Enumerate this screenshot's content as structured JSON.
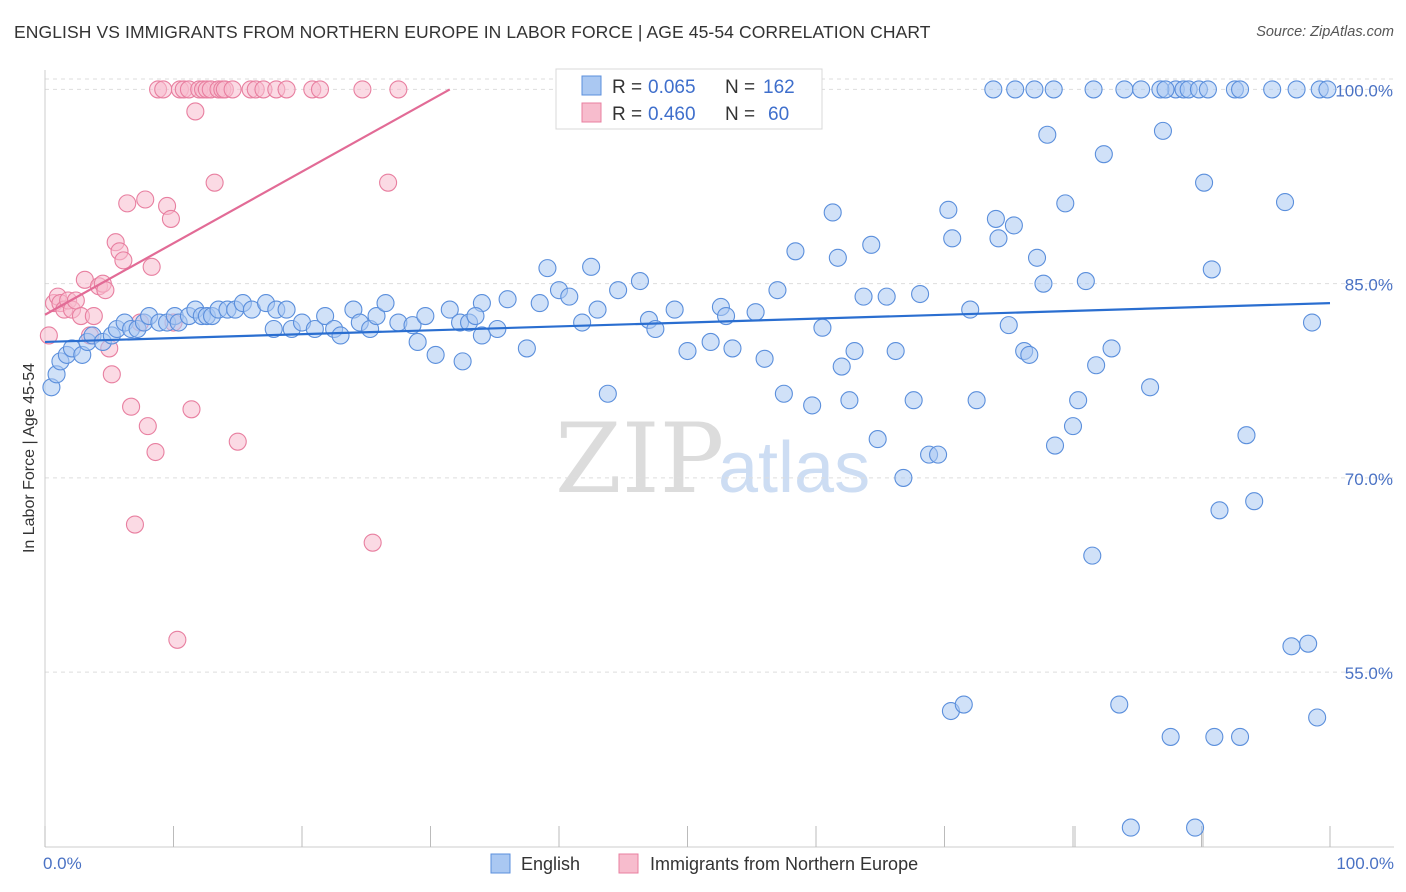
{
  "title": "ENGLISH VS IMMIGRANTS FROM NORTHERN EUROPE IN LABOR FORCE | AGE 45-54 CORRELATION CHART",
  "source": "Source: ZipAtlas.com",
  "watermark": {
    "zip": "ZIP",
    "atlas": "atlas"
  },
  "colors": {
    "english_fill": "#aac8f2",
    "english_stroke": "#5b8fdc",
    "english_line": "#2a6ed0",
    "immig_fill": "#f7bccd",
    "immig_stroke": "#e87fa0",
    "immig_line": "#e26b96",
    "grid": "#dddddd",
    "tick_text": "#4a72c4"
  },
  "stats_box": {
    "rows": [
      {
        "r_label": "R =",
        "r_value": "0.065",
        "n_label": "N =",
        "n_value": "162"
      },
      {
        "r_label": "R =",
        "r_value": "0.460",
        "n_label": "N =",
        "n_value": "60"
      }
    ]
  },
  "chart_data": {
    "type": "scatter",
    "title": "ENGLISH VS IMMIGRANTS FROM NORTHERN EUROPE IN LABOR FORCE | AGE 45-54 CORRELATION CHART",
    "xlabel": "",
    "ylabel": "In Labor Force | Age 45-54",
    "xlim": [
      0,
      100
    ],
    "ylim": [
      41.5,
      101.5
    ],
    "x_tick_labels": [
      "0.0%",
      "100.0%"
    ],
    "y_ticks": [
      55,
      70,
      85,
      100
    ],
    "y_tick_labels": [
      "55.0%",
      "70.0%",
      "85.0%",
      "100.0%"
    ],
    "grid": true,
    "legend_position": "bottom-center",
    "series": [
      {
        "name": "English",
        "R": 0.065,
        "N": 162,
        "trend": [
          [
            0,
            80.5
          ],
          [
            100,
            83.5
          ]
        ],
        "points": [
          [
            0.5,
            77
          ],
          [
            0.9,
            78
          ],
          [
            1.2,
            79
          ],
          [
            1.7,
            79.5
          ],
          [
            2.1,
            80
          ],
          [
            2.9,
            79.5
          ],
          [
            3.3,
            80.5
          ],
          [
            3.7,
            81
          ],
          [
            4.5,
            80.5
          ],
          [
            5.2,
            81
          ],
          [
            5.6,
            81.5
          ],
          [
            6.2,
            82
          ],
          [
            6.7,
            81.5
          ],
          [
            7.2,
            81.5
          ],
          [
            7.7,
            82
          ],
          [
            8.1,
            82.5
          ],
          [
            8.9,
            82
          ],
          [
            9.5,
            82
          ],
          [
            10.1,
            82.5
          ],
          [
            10.4,
            82
          ],
          [
            11.2,
            82.5
          ],
          [
            11.7,
            83
          ],
          [
            12.2,
            82.5
          ],
          [
            12.6,
            82.5
          ],
          [
            13.0,
            82.5
          ],
          [
            13.5,
            83
          ],
          [
            14.2,
            83
          ],
          [
            14.8,
            83
          ],
          [
            15.4,
            83.5
          ],
          [
            16.1,
            83
          ],
          [
            17.2,
            83.5
          ],
          [
            18.0,
            83
          ],
          [
            18.8,
            83
          ],
          [
            17.8,
            81.5
          ],
          [
            19.2,
            81.5
          ],
          [
            20.0,
            82
          ],
          [
            21.0,
            81.5
          ],
          [
            21.8,
            82.5
          ],
          [
            22.5,
            81.5
          ],
          [
            23.0,
            81
          ],
          [
            24.0,
            83
          ],
          [
            24.5,
            82
          ],
          [
            25.3,
            81.5
          ],
          [
            25.8,
            82.5
          ],
          [
            26.5,
            83.5
          ],
          [
            27.5,
            82
          ],
          [
            28.6,
            81.8
          ],
          [
            29.0,
            80.5
          ],
          [
            29.6,
            82.5
          ],
          [
            30.4,
            79.5
          ],
          [
            31.5,
            83
          ],
          [
            32.3,
            82
          ],
          [
            33.0,
            82
          ],
          [
            34.0,
            81
          ],
          [
            35.2,
            81.5
          ],
          [
            36.0,
            83.8
          ],
          [
            37.5,
            80
          ],
          [
            38.5,
            83.5
          ],
          [
            39.1,
            86.2
          ],
          [
            40.0,
            84.5
          ],
          [
            40.8,
            84
          ],
          [
            34.0,
            83.5
          ],
          [
            33.5,
            82.5
          ],
          [
            32.5,
            79
          ],
          [
            41.8,
            82
          ],
          [
            42.5,
            86.3
          ],
          [
            43.0,
            83
          ],
          [
            43.8,
            76.5
          ],
          [
            44.6,
            84.5
          ],
          [
            46.3,
            85.2
          ],
          [
            47.0,
            82.2
          ],
          [
            47.5,
            81.5
          ],
          [
            49.0,
            83
          ],
          [
            50.0,
            79.8
          ],
          [
            51.8,
            80.5
          ],
          [
            52.6,
            83.2
          ],
          [
            53.0,
            82.5
          ],
          [
            53.5,
            80
          ],
          [
            55.3,
            82.8
          ],
          [
            56.0,
            79.2
          ],
          [
            57.0,
            84.5
          ],
          [
            57.5,
            76.5
          ],
          [
            58.4,
            87.5
          ],
          [
            59.7,
            75.6
          ],
          [
            60.5,
            81.6
          ],
          [
            61.3,
            90.5
          ],
          [
            61.7,
            87
          ],
          [
            62.0,
            78.6
          ],
          [
            62.6,
            76
          ],
          [
            63.0,
            79.8
          ],
          [
            63.7,
            84
          ],
          [
            64.3,
            88
          ],
          [
            64.8,
            73
          ],
          [
            65.5,
            84
          ],
          [
            66.2,
            79.8
          ],
          [
            66.8,
            70
          ],
          [
            67.6,
            76
          ],
          [
            68.1,
            84.2
          ],
          [
            68.8,
            71.8
          ],
          [
            69.5,
            71.8
          ],
          [
            70.3,
            90.7
          ],
          [
            70.6,
            88.5
          ],
          [
            72.0,
            83
          ],
          [
            72.5,
            76
          ],
          [
            74.0,
            90
          ],
          [
            74.2,
            88.5
          ],
          [
            75.0,
            81.8
          ],
          [
            75.4,
            89.5
          ],
          [
            76.2,
            79.8
          ],
          [
            76.6,
            79.5
          ],
          [
            77.2,
            87
          ],
          [
            77.7,
            85
          ],
          [
            78.0,
            96.5
          ],
          [
            78.6,
            72.5
          ],
          [
            79.4,
            91.2
          ],
          [
            80.0,
            74
          ],
          [
            80.4,
            76
          ],
          [
            81.0,
            85.2
          ],
          [
            81.5,
            64
          ],
          [
            81.8,
            78.7
          ],
          [
            82.4,
            95
          ],
          [
            83.0,
            80
          ],
          [
            83.6,
            52.5
          ],
          [
            84.0,
            100
          ],
          [
            84.5,
            43
          ],
          [
            85.3,
            100
          ],
          [
            86.0,
            77
          ],
          [
            87.0,
            96.8
          ],
          [
            87.6,
            50
          ],
          [
            88.0,
            100
          ],
          [
            88.6,
            100
          ],
          [
            89.0,
            100
          ],
          [
            89.5,
            43
          ],
          [
            90.2,
            92.8
          ],
          [
            90.8,
            86.1
          ],
          [
            91.4,
            67.5
          ],
          [
            92.6,
            100
          ],
          [
            93.0,
            100
          ],
          [
            93.5,
            73.3
          ],
          [
            94.1,
            68.2
          ],
          [
            95.5,
            100
          ],
          [
            96.5,
            91.3
          ],
          [
            97.0,
            57
          ],
          [
            97.4,
            100
          ],
          [
            98.3,
            57.2
          ],
          [
            98.6,
            82
          ],
          [
            99.0,
            51.5
          ],
          [
            99.2,
            100
          ],
          [
            99.8,
            100
          ],
          [
            75.5,
            100
          ],
          [
            77.0,
            100
          ],
          [
            78.5,
            100
          ],
          [
            81.6,
            100
          ],
          [
            86.8,
            100
          ],
          [
            87.2,
            100
          ],
          [
            89.8,
            100
          ],
          [
            90.5,
            100
          ],
          [
            91.0,
            50
          ],
          [
            93.0,
            50
          ],
          [
            70.5,
            52
          ],
          [
            71.5,
            52.5
          ],
          [
            73.8,
            100
          ]
        ]
      },
      {
        "name": "Immigrants from Northern Europe",
        "R": 0.46,
        "N": 60,
        "trend": [
          [
            0,
            82.6
          ],
          [
            31.5,
            100
          ]
        ],
        "points": [
          [
            0.3,
            81
          ],
          [
            0.7,
            83.5
          ],
          [
            1.0,
            84
          ],
          [
            1.2,
            83.5
          ],
          [
            1.5,
            83
          ],
          [
            1.8,
            83.7
          ],
          [
            2.1,
            83
          ],
          [
            2.4,
            83.7
          ],
          [
            2.8,
            82.5
          ],
          [
            3.1,
            85.3
          ],
          [
            3.5,
            81
          ],
          [
            3.8,
            82.5
          ],
          [
            4.2,
            84.8
          ],
          [
            4.5,
            85
          ],
          [
            4.7,
            84.5
          ],
          [
            5.0,
            80
          ],
          [
            5.2,
            78
          ],
          [
            5.5,
            88.2
          ],
          [
            5.8,
            87.5
          ],
          [
            6.1,
            86.8
          ],
          [
            6.4,
            91.2
          ],
          [
            6.7,
            75.5
          ],
          [
            7.0,
            66.4
          ],
          [
            7.4,
            82
          ],
          [
            7.8,
            91.5
          ],
          [
            8.0,
            74
          ],
          [
            8.3,
            86.3
          ],
          [
            8.6,
            72
          ],
          [
            8.8,
            100
          ],
          [
            9.2,
            100
          ],
          [
            9.5,
            91
          ],
          [
            9.8,
            90
          ],
          [
            10.0,
            82
          ],
          [
            10.3,
            57.5
          ],
          [
            10.5,
            100
          ],
          [
            10.8,
            100
          ],
          [
            11.2,
            100
          ],
          [
            11.4,
            75.3
          ],
          [
            11.7,
            98.3
          ],
          [
            12.0,
            100
          ],
          [
            12.3,
            100
          ],
          [
            12.6,
            100
          ],
          [
            12.9,
            100
          ],
          [
            13.2,
            92.8
          ],
          [
            13.5,
            100
          ],
          [
            13.8,
            100
          ],
          [
            14.0,
            100
          ],
          [
            14.6,
            100
          ],
          [
            15.0,
            72.8
          ],
          [
            16.0,
            100
          ],
          [
            16.4,
            100
          ],
          [
            17.0,
            100
          ],
          [
            18.0,
            100
          ],
          [
            18.8,
            100
          ],
          [
            20.8,
            100
          ],
          [
            21.4,
            100
          ],
          [
            24.7,
            100
          ],
          [
            26.7,
            92.8
          ],
          [
            25.5,
            65
          ],
          [
            27.5,
            100
          ]
        ]
      }
    ]
  }
}
